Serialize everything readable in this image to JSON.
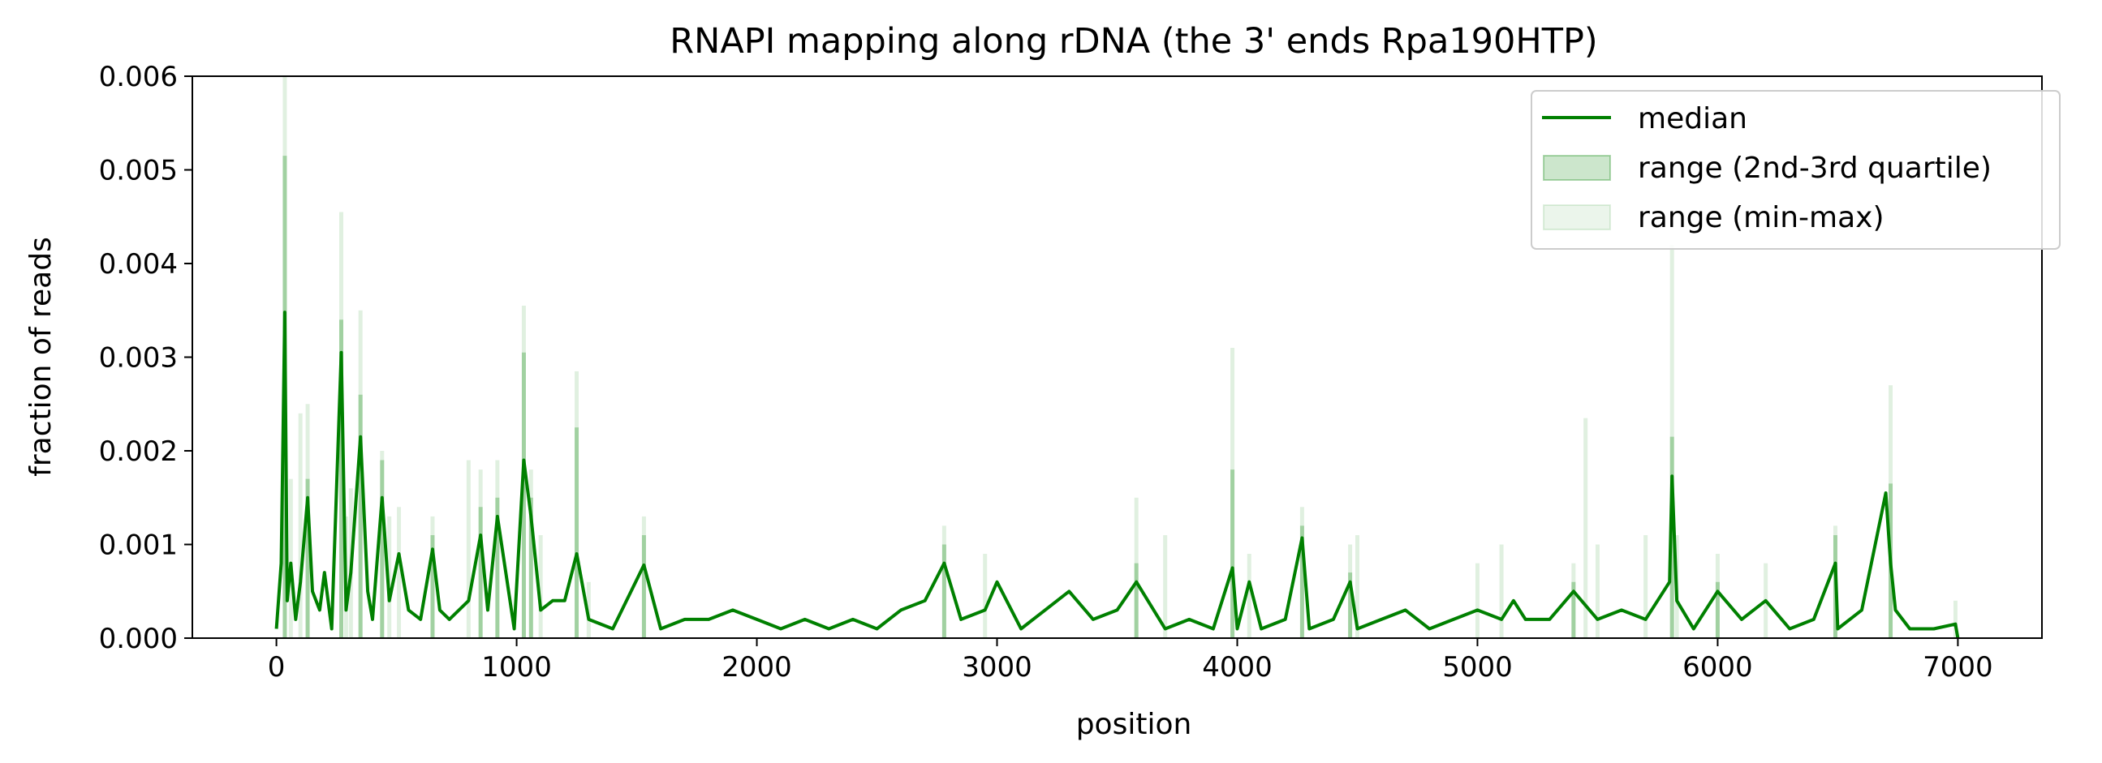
{
  "chart_data": {
    "type": "area",
    "title": "RNAPI mapping along rDNA (the 3' ends Rpa190HTP)",
    "xlabel": "position",
    "ylabel": "fraction of reads",
    "xlim": [
      -350,
      7350
    ],
    "ylim": [
      0,
      0.006
    ],
    "xticks": [
      0,
      1000,
      2000,
      3000,
      4000,
      5000,
      6000,
      7000
    ],
    "xtick_labels": [
      "0",
      "1000",
      "2000",
      "3000",
      "4000",
      "5000",
      "6000",
      "7000"
    ],
    "yticks": [
      0,
      0.001,
      0.002,
      0.003,
      0.004,
      0.005,
      0.006
    ],
    "ytick_labels": [
      "0.000",
      "0.001",
      "0.002",
      "0.003",
      "0.004",
      "0.005",
      "0.006"
    ],
    "grid": false,
    "legend_position": "top-right",
    "colors": {
      "median": "#008000",
      "quartile_fill": "#008000",
      "minmax_fill": "#008000"
    },
    "series": [
      {
        "name": "median",
        "kind": "line",
        "x": [
          0,
          20,
          35,
          45,
          60,
          80,
          100,
          130,
          150,
          180,
          200,
          230,
          270,
          290,
          310,
          350,
          380,
          400,
          440,
          470,
          510,
          550,
          600,
          650,
          680,
          720,
          800,
          850,
          880,
          920,
          990,
          1030,
          1060,
          1100,
          1150,
          1200,
          1250,
          1300,
          1400,
          1530,
          1600,
          1700,
          1800,
          1900,
          2000,
          2100,
          2200,
          2300,
          2400,
          2500,
          2600,
          2700,
          2780,
          2850,
          2950,
          3000,
          3100,
          3200,
          3300,
          3400,
          3500,
          3580,
          3700,
          3800,
          3900,
          3980,
          4000,
          4050,
          4100,
          4200,
          4270,
          4300,
          4400,
          4470,
          4500,
          4600,
          4700,
          4800,
          4900,
          5000,
          5100,
          5150,
          5200,
          5300,
          5400,
          5500,
          5600,
          5700,
          5800,
          5810,
          5830,
          5900,
          6000,
          6100,
          6200,
          6300,
          6400,
          6490,
          6500,
          6600,
          6700,
          6720,
          6740,
          6800,
          6900,
          6990,
          7000
        ],
        "y": [
          0.0001,
          0.0008,
          0.00348,
          0.0004,
          0.0008,
          0.0002,
          0.0006,
          0.0015,
          0.0005,
          0.0003,
          0.0007,
          0.0001,
          0.00305,
          0.0003,
          0.0007,
          0.00215,
          0.0005,
          0.0002,
          0.0015,
          0.0004,
          0.0009,
          0.0003,
          0.0002,
          0.00095,
          0.0003,
          0.0002,
          0.0004,
          0.0011,
          0.0003,
          0.0013,
          0.0001,
          0.0019,
          0.0013,
          0.0003,
          0.0004,
          0.0004,
          0.0009,
          0.0002,
          0.0001,
          0.00078,
          0.0001,
          0.0002,
          0.0002,
          0.0003,
          0.0002,
          0.0001,
          0.0002,
          0.0001,
          0.0002,
          0.0001,
          0.0003,
          0.0004,
          0.0008,
          0.0002,
          0.0003,
          0.0006,
          0.0001,
          0.0003,
          0.0005,
          0.0002,
          0.0003,
          0.0006,
          0.0001,
          0.0002,
          0.0001,
          0.00075,
          0.0001,
          0.0006,
          0.0001,
          0.0002,
          0.00107,
          0.0001,
          0.0002,
          0.0006,
          0.0001,
          0.0002,
          0.0003,
          0.0001,
          0.0002,
          0.0003,
          0.0002,
          0.0004,
          0.0002,
          0.0002,
          0.0005,
          0.0002,
          0.0003,
          0.0002,
          0.0006,
          0.00173,
          0.0004,
          0.0001,
          0.0005,
          0.0002,
          0.0004,
          0.0001,
          0.0002,
          0.0008,
          0.0001,
          0.0003,
          0.00155,
          0.0008,
          0.0003,
          0.0001,
          0.0001,
          0.00015,
          0.0
        ]
      },
      {
        "name": "range (2nd-3rd quartile)",
        "kind": "band",
        "peaks": [
          [
            35,
            0.00515
          ],
          [
            130,
            0.0017
          ],
          [
            270,
            0.0034
          ],
          [
            350,
            0.0026
          ],
          [
            440,
            0.0019
          ],
          [
            650,
            0.0011
          ],
          [
            850,
            0.0014
          ],
          [
            920,
            0.0015
          ],
          [
            1030,
            0.00305
          ],
          [
            1060,
            0.0015
          ],
          [
            1250,
            0.00225
          ],
          [
            1530,
            0.0011
          ],
          [
            2780,
            0.001
          ],
          [
            3580,
            0.0008
          ],
          [
            3980,
            0.0018
          ],
          [
            4270,
            0.0012
          ],
          [
            4470,
            0.0007
          ],
          [
            5400,
            0.0006
          ],
          [
            5810,
            0.00215
          ],
          [
            6000,
            0.0006
          ],
          [
            6490,
            0.0011
          ],
          [
            6720,
            0.00165
          ]
        ]
      },
      {
        "name": "range (min-max)",
        "kind": "band",
        "peaks": [
          [
            35,
            0.006
          ],
          [
            60,
            0.0017
          ],
          [
            100,
            0.0024
          ],
          [
            130,
            0.0025
          ],
          [
            270,
            0.00455
          ],
          [
            290,
            0.0013
          ],
          [
            310,
            0.0016
          ],
          [
            350,
            0.0035
          ],
          [
            440,
            0.002
          ],
          [
            470,
            0.0013
          ],
          [
            510,
            0.0014
          ],
          [
            650,
            0.0013
          ],
          [
            800,
            0.0019
          ],
          [
            850,
            0.0018
          ],
          [
            920,
            0.0019
          ],
          [
            1030,
            0.00355
          ],
          [
            1060,
            0.0018
          ],
          [
            1100,
            0.0011
          ],
          [
            1250,
            0.00285
          ],
          [
            1300,
            0.0006
          ],
          [
            1530,
            0.0013
          ],
          [
            2780,
            0.0012
          ],
          [
            2950,
            0.0009
          ],
          [
            3580,
            0.0015
          ],
          [
            3700,
            0.0011
          ],
          [
            3980,
            0.0031
          ],
          [
            4050,
            0.0009
          ],
          [
            4270,
            0.0014
          ],
          [
            4470,
            0.001
          ],
          [
            4500,
            0.0011
          ],
          [
            5000,
            0.0008
          ],
          [
            5100,
            0.001
          ],
          [
            5400,
            0.0008
          ],
          [
            5450,
            0.00235
          ],
          [
            5500,
            0.001
          ],
          [
            5700,
            0.0011
          ],
          [
            5810,
            0.0042
          ],
          [
            5830,
            0.0011
          ],
          [
            6000,
            0.0009
          ],
          [
            6200,
            0.0008
          ],
          [
            6490,
            0.0012
          ],
          [
            6720,
            0.0027
          ],
          [
            6990,
            0.0004
          ]
        ]
      }
    ],
    "legend": [
      {
        "label": "median",
        "style": "line"
      },
      {
        "label": "range (2nd-3rd quartile)",
        "style": "band-dark"
      },
      {
        "label": "range (min-max)",
        "style": "band-light"
      }
    ]
  }
}
